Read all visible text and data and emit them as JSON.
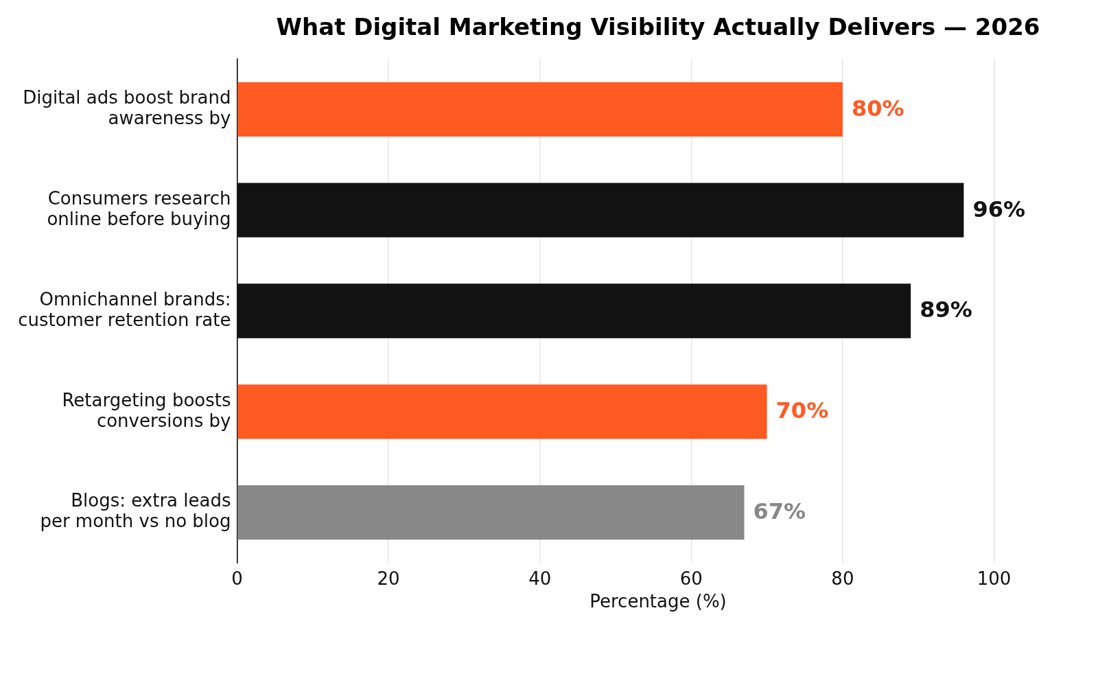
{
  "chart_data": {
    "type": "bar",
    "orientation": "horizontal",
    "title": "What Digital Marketing Visibility Actually Delivers — 2026",
    "categories": [
      "Digital ads boost brand\nawareness by",
      "Consumers research\nonline before buying",
      "Omnichannel brands:\ncustomer retention rate",
      "Retargeting boosts\nconversions by",
      "Blogs: extra leads\nper month vs no blog"
    ],
    "values": [
      80,
      96,
      89,
      70,
      67
    ],
    "colors": [
      "#ff5a22",
      "#121212",
      "#121212",
      "#ff5a22",
      "#888888"
    ],
    "value_labels": [
      "80%",
      "96%",
      "89%",
      "70%",
      "67%"
    ],
    "xlabel": "Percentage (%)",
    "xlim": [
      0,
      100
    ],
    "xticks": [
      0,
      20,
      40,
      60,
      80,
      100
    ],
    "grid": "x"
  }
}
